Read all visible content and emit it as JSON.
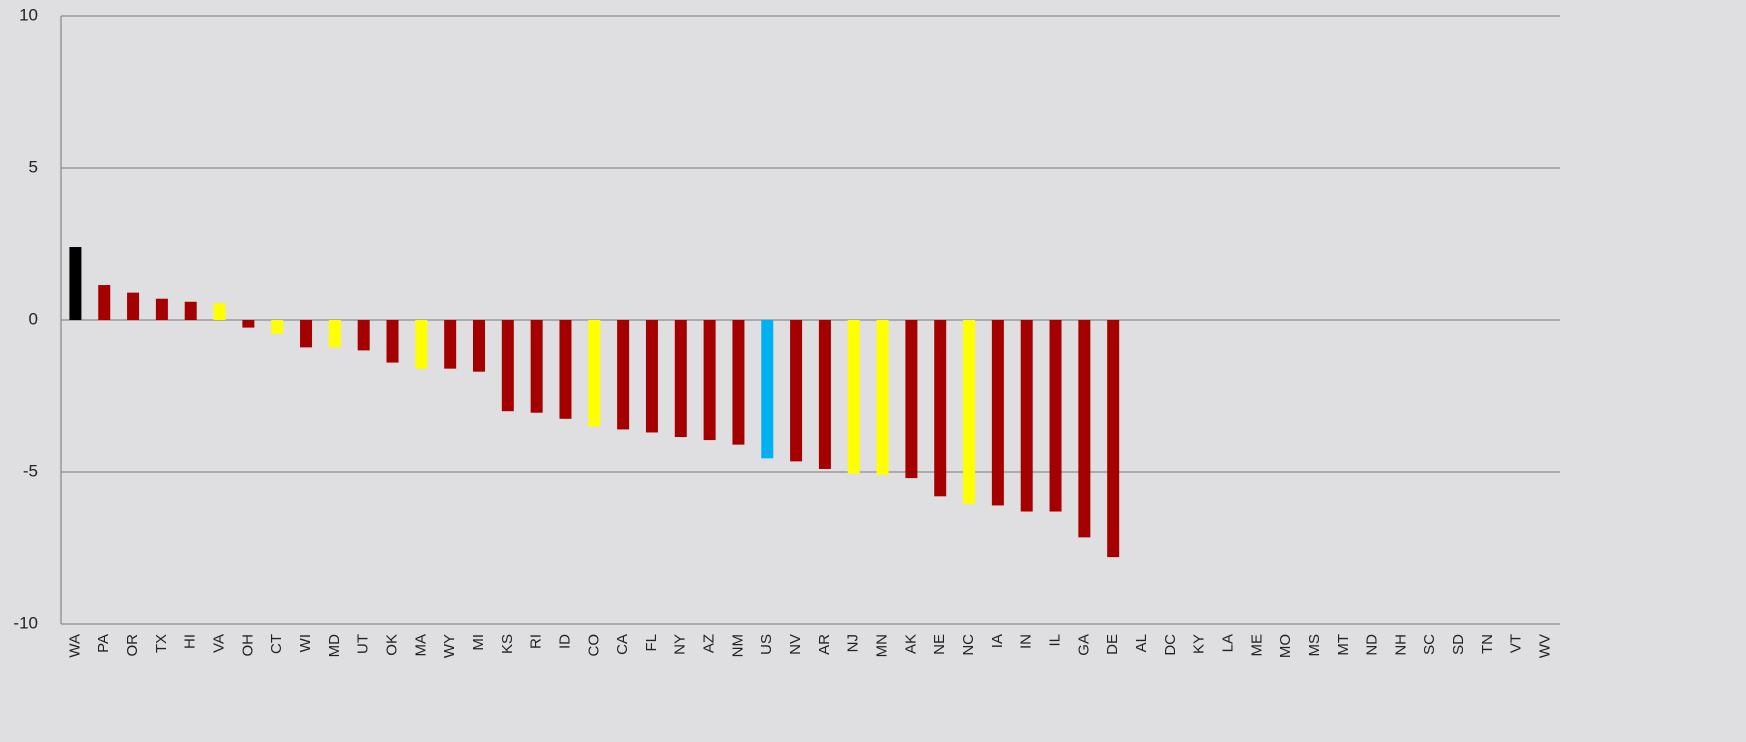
{
  "chart_data": {
    "type": "bar",
    "categories": [
      "WA",
      "PA",
      "OR",
      "TX",
      "HI",
      "VA",
      "OH",
      "CT",
      "WI",
      "MD",
      "UT",
      "OK",
      "MA",
      "WY",
      "MI",
      "KS",
      "RI",
      "ID",
      "CO",
      "CA",
      "FL",
      "NY",
      "AZ",
      "NM",
      "US",
      "NV",
      "AR",
      "NJ",
      "MN",
      "AK",
      "NE",
      "NC",
      "IA",
      "IN",
      "IL",
      "GA",
      "DE",
      "AL",
      "DC",
      "KY",
      "LA",
      "ME",
      "MO",
      "MS",
      "MT",
      "ND",
      "NH",
      "SC",
      "SD",
      "TN",
      "VT",
      "WV"
    ],
    "values": [
      2.4,
      1.15,
      0.9,
      0.7,
      0.6,
      0.55,
      -0.25,
      -0.45,
      -0.9,
      -0.9,
      -1.0,
      -1.4,
      -1.6,
      -1.6,
      -1.7,
      -3.0,
      -3.05,
      -3.25,
      -3.5,
      -3.6,
      -3.7,
      -3.85,
      -3.95,
      -4.1,
      -4.55,
      -4.65,
      -4.9,
      -5.05,
      -5.1,
      -5.2,
      -5.8,
      -6.05,
      -6.1,
      -6.3,
      -6.3,
      -7.15,
      -7.8,
      null,
      null,
      null,
      null,
      null,
      null,
      null,
      null,
      null,
      null,
      null,
      null,
      null,
      null,
      null
    ],
    "colors": [
      "#000000",
      "#a50000",
      "#a50000",
      "#a50000",
      "#a50000",
      "#ffff00",
      "#a50000",
      "#ffff00",
      "#a50000",
      "#ffff00",
      "#a50000",
      "#a50000",
      "#ffff00",
      "#a50000",
      "#a50000",
      "#a50000",
      "#a50000",
      "#a50000",
      "#ffff00",
      "#a50000",
      "#a50000",
      "#a50000",
      "#a50000",
      "#a50000",
      "#00b0f0",
      "#a50000",
      "#a50000",
      "#ffff00",
      "#ffff00",
      "#a50000",
      "#a50000",
      "#ffff00",
      "#a50000",
      "#a50000",
      "#a50000",
      "#a50000",
      "#a50000",
      "#a50000",
      "#a50000",
      "#a50000",
      "#a50000",
      "#a50000",
      "#a50000",
      "#a50000",
      "#a50000",
      "#a50000",
      "#a50000",
      "#a50000",
      "#a50000",
      "#a50000",
      "#a50000",
      "#a50000"
    ],
    "ylim": [
      -10,
      10
    ],
    "yticks": [
      -10,
      -5,
      0,
      5,
      10
    ],
    "grid": true
  }
}
